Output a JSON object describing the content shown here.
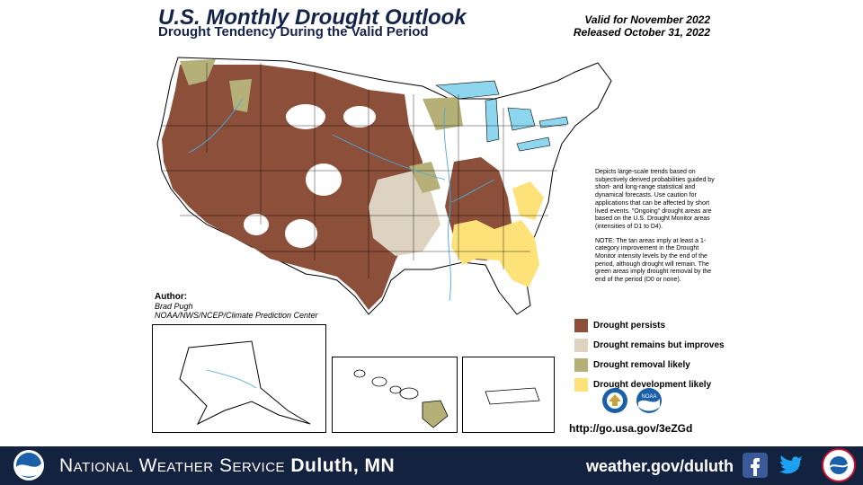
{
  "header": {
    "title": "U.S. Monthly Drought Outlook",
    "subtitle": "Drought Tendency During the Valid Period",
    "valid_for": "Valid for November 2022",
    "released": "Released October 31, 2022"
  },
  "author": {
    "label": "Author:",
    "name": "Brad Pugh",
    "org": "NOAA/NWS/NCEP/Climate Prediction Center"
  },
  "notes": {
    "paragraph1": "Depicts large-scale trends based on subjectively derived probabilities guided by short- and long-range statistical and dynamical forecasts. Use caution for applications that can be affected by short lived events. \"Ongoing\" drought areas are based on the U.S. Drought Monitor areas (intensities of D1 to D4).",
    "paragraph2": "NOTE: The tan areas imply at least a 1-category improvement in the Drought Monitor intensity levels by the end of the period, although drought will remain. The green areas imply drought removal by the end of the period (D0 or none)."
  },
  "legend": [
    {
      "label": "Drought persists",
      "color": "#8b4f3a"
    },
    {
      "label": "Drought remains but improves",
      "color": "#ddd3c0"
    },
    {
      "label": "Drought removal likely",
      "color": "#b5b077"
    },
    {
      "label": "Drought development likely",
      "color": "#fde27a"
    }
  ],
  "map_colors": {
    "persists": "#8b4f3a",
    "improves": "#ddd3c0",
    "removal": "#b5b077",
    "development": "#fde27a",
    "water": "#8dd6ee"
  },
  "logos": [
    "noaa-logo",
    "nws-logo"
  ],
  "url": "http://go.usa.gov/3eZGd",
  "footer": {
    "name_part1": "National Weather Service",
    "name_part2": "Duluth, MN",
    "website": "weather.gov/duluth",
    "background": "#13233f"
  }
}
